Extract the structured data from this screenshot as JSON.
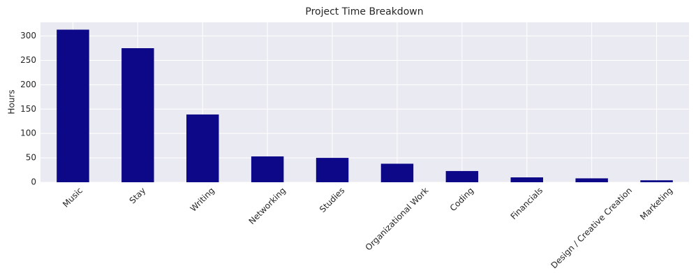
{
  "chart_data": {
    "type": "bar",
    "title": "Project Time Breakdown",
    "y_label": "Hours",
    "categories": [
      "Music",
      "Stay",
      "Writing",
      "Networking",
      "Studies",
      "Organizational Work",
      "Coding",
      "Financials",
      "Design / Creative Creation",
      "Marketing"
    ],
    "values": [
      313,
      275,
      139,
      53,
      50,
      38,
      23,
      10,
      8,
      4
    ],
    "color": "#0d0887",
    "ylim": [
      0,
      328
    ],
    "yticks": [
      0,
      50,
      100,
      150,
      200,
      250,
      300
    ],
    "grid": true
  }
}
